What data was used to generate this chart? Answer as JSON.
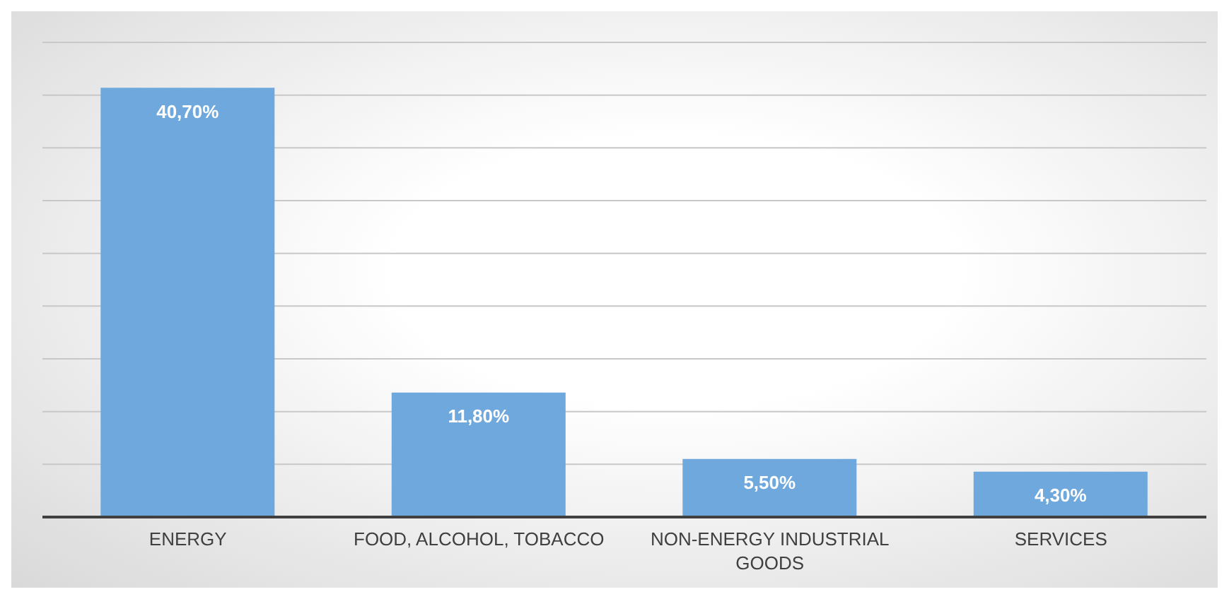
{
  "chart_data": {
    "type": "bar",
    "categories": [
      "ENERGY",
      "FOOD, ALCOHOL, TOBACCO",
      "NON-ENERGY INDUSTRIAL GOODS",
      "SERVICES"
    ],
    "values": [
      40.7,
      11.8,
      5.5,
      4.3
    ],
    "value_labels": [
      "40,70%",
      "11,80%",
      "5,50%",
      "4,30%"
    ],
    "color": "#6fa8dc",
    "ylim": [
      0,
      45
    ],
    "yticks": [
      {
        "value": 0,
        "label": null
      },
      {
        "value": 5,
        "label": null
      },
      {
        "value": 10,
        "label": null
      },
      {
        "value": 15,
        "label": null
      },
      {
        "value": 20,
        "label": null
      },
      {
        "value": 25,
        "label": null
      },
      {
        "value": 30,
        "label": null
      },
      {
        "value": 35,
        "label": null
      },
      {
        "value": 40,
        "label": null
      },
      {
        "value": 45,
        "label": null
      }
    ],
    "grid": "y",
    "tick_labels": "x",
    "legend": false
  }
}
